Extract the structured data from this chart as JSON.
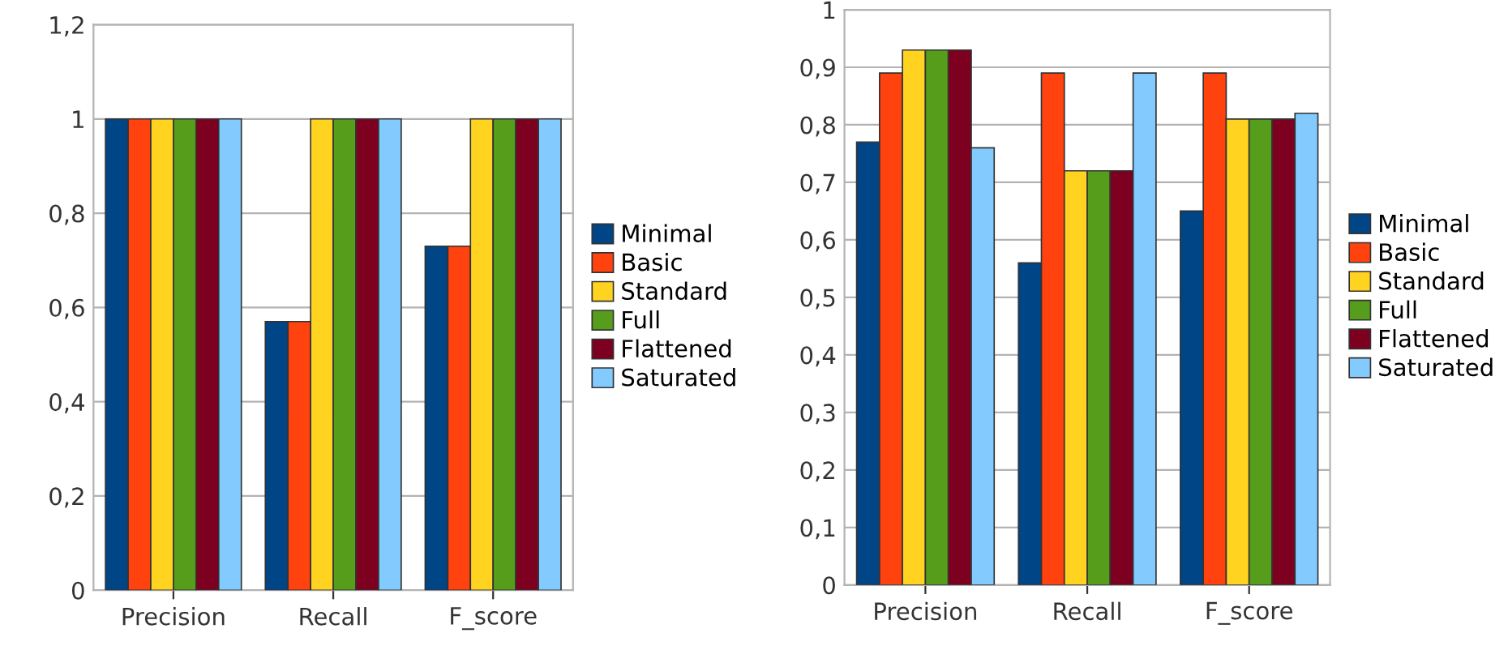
{
  "chart_data": [
    {
      "type": "bar",
      "categories": [
        "Precision",
        "Recall",
        "F_score"
      ],
      "ylim": [
        0,
        1.2
      ],
      "yticks": [
        {
          "value": 0,
          "label": "0"
        },
        {
          "value": 0.2,
          "label": "0,2"
        },
        {
          "value": 0.4,
          "label": "0,4"
        },
        {
          "value": 0.6,
          "label": "0,6"
        },
        {
          "value": 0.8,
          "label": "0,8"
        },
        {
          "value": 1,
          "label": "1"
        },
        {
          "value": 1.2,
          "label": "1,2"
        }
      ],
      "grid": "y",
      "legend": "right",
      "series": [
        {
          "name": "Minimal",
          "color": "#004586",
          "values": [
            1,
            0.57,
            0.73
          ]
        },
        {
          "name": "Basic",
          "color": "#ff420e",
          "values": [
            1,
            0.57,
            0.73
          ]
        },
        {
          "name": "Standard",
          "color": "#ffd320",
          "values": [
            1,
            1,
            1
          ]
        },
        {
          "name": "Full",
          "color": "#579d1c",
          "values": [
            1,
            1,
            1
          ]
        },
        {
          "name": "Flattened",
          "color": "#7e0021",
          "values": [
            1,
            1,
            1
          ]
        },
        {
          "name": "Saturated",
          "color": "#83caff",
          "values": [
            1,
            1,
            1
          ]
        }
      ]
    },
    {
      "type": "bar",
      "categories": [
        "Precision",
        "Recall",
        "F_score"
      ],
      "ylim": [
        0,
        1
      ],
      "yticks": [
        {
          "value": 0,
          "label": "0"
        },
        {
          "value": 0.1,
          "label": "0,1"
        },
        {
          "value": 0.2,
          "label": "0,2"
        },
        {
          "value": 0.3,
          "label": "0,3"
        },
        {
          "value": 0.4,
          "label": "0,4"
        },
        {
          "value": 0.5,
          "label": "0,5"
        },
        {
          "value": 0.6,
          "label": "0,6"
        },
        {
          "value": 0.7,
          "label": "0,7"
        },
        {
          "value": 0.8,
          "label": "0,8"
        },
        {
          "value": 0.9,
          "label": "0,9"
        },
        {
          "value": 1,
          "label": "1"
        }
      ],
      "grid": "y",
      "legend": "right",
      "series": [
        {
          "name": "Minimal",
          "color": "#004586",
          "values": [
            0.77,
            0.56,
            0.65
          ]
        },
        {
          "name": "Basic",
          "color": "#ff420e",
          "values": [
            0.89,
            0.89,
            0.89
          ]
        },
        {
          "name": "Standard",
          "color": "#ffd320",
          "values": [
            0.93,
            0.72,
            0.81
          ]
        },
        {
          "name": "Full",
          "color": "#579d1c",
          "values": [
            0.93,
            0.72,
            0.81
          ]
        },
        {
          "name": "Flattened",
          "color": "#7e0021",
          "values": [
            0.93,
            0.72,
            0.81
          ]
        },
        {
          "name": "Saturated",
          "color": "#83caff",
          "values": [
            0.76,
            0.89,
            0.82
          ]
        }
      ]
    }
  ]
}
